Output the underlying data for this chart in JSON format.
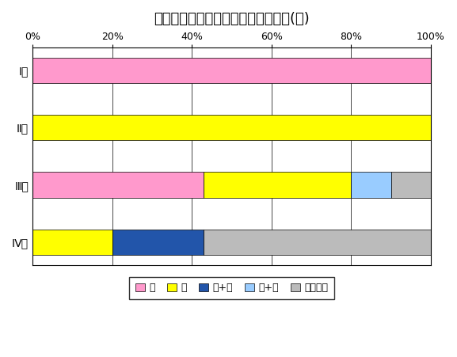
{
  "title": "治療前ステージ別・治療方法の割合(肝)",
  "categories": [
    "Ⅳ期",
    "Ⅲ期",
    "Ⅱ期",
    "Ⅰ期"
  ],
  "series": [
    {
      "label": "手",
      "color": "#FF99CC",
      "values": [
        0.0,
        43.0,
        0.0,
        100.0
      ]
    },
    {
      "label": "薬",
      "color": "#FFFF00",
      "values": [
        20.0,
        37.0,
        100.0,
        0.0
      ]
    },
    {
      "label": "放+薬",
      "color": "#2255AA",
      "values": [
        23.0,
        0.0,
        0.0,
        0.0
      ]
    },
    {
      "label": "薬+他",
      "color": "#99CCFF",
      "values": [
        0.0,
        10.0,
        0.0,
        0.0
      ]
    },
    {
      "label": "治療なし",
      "color": "#BBBBBB",
      "values": [
        57.0,
        10.0,
        0.0,
        0.0
      ]
    }
  ],
  "xlim": [
    0,
    100
  ],
  "xticks": [
    0,
    20,
    40,
    60,
    80,
    100
  ],
  "xticklabels": [
    "0%",
    "20%",
    "40%",
    "60%",
    "80%",
    "100%"
  ],
  "legend_fontsize": 9,
  "title_fontsize": 13,
  "tick_fontsize": 9,
  "ylabel_fontsize": 10,
  "background_color": "#FFFFFF"
}
